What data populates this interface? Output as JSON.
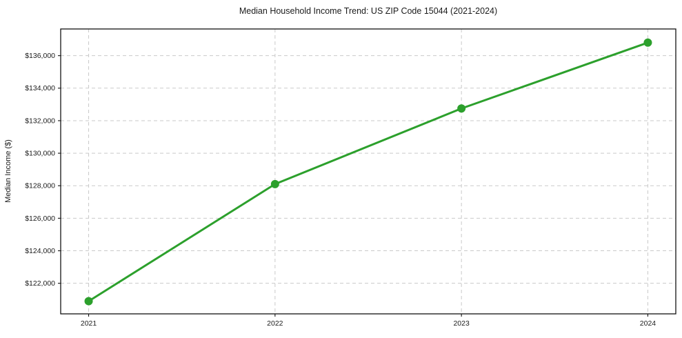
{
  "title": "Median Household Income Trend: US ZIP Code 15044 (2021-2024)",
  "colors": {
    "background": "#ffffff",
    "line": "#2ca02c",
    "marker": "#2ca02c",
    "grid": "#c9c9c9",
    "axis": "#111111",
    "text": "#1a1a1a"
  },
  "chart_data": {
    "type": "line",
    "title": "Median Household Income Trend: US ZIP Code 15044 (2021-2024)",
    "xlabel": "",
    "ylabel": "Median Income ($)",
    "series_name": "Median Household Income",
    "x": [
      2021,
      2022,
      2023,
      2024
    ],
    "values": [
      120900,
      128100,
      132750,
      136800
    ],
    "xticks": [
      2021,
      2022,
      2023,
      2024
    ],
    "xtick_labels": [
      "2021",
      "2022",
      "2023",
      "2024"
    ],
    "yticks": [
      122000,
      124000,
      126000,
      128000,
      130000,
      132000,
      134000,
      136000
    ],
    "ytick_labels": [
      "$122,000",
      "$124,000",
      "$126,000",
      "$128,000",
      "$130,000",
      "$132,000",
      "$134,000",
      "$136,000"
    ],
    "xlim": [
      2020.85,
      2024.15
    ],
    "ylim": [
      120120,
      137640
    ],
    "grid": true,
    "grid_style": "dashed",
    "legend": false,
    "marker": "circle",
    "marker_size": 6,
    "line_width": 3
  }
}
